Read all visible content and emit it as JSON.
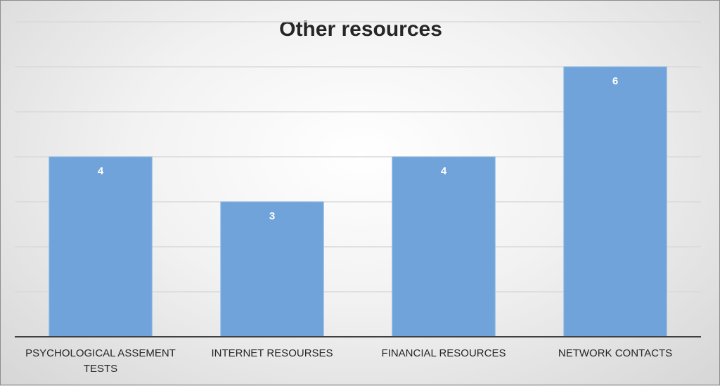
{
  "chart_data": {
    "type": "bar",
    "title": "Other resources",
    "categories": [
      "PSYCHOLOGICAL ASSEMENT TESTS",
      "INTERNET RESOURSES",
      "FINANCIAL RESOURCES",
      "NETWORK CONTACTS"
    ],
    "category_lines": [
      [
        "PSYCHOLOGICAL ASSEMENT",
        "TESTS"
      ],
      [
        "INTERNET RESOURSES"
      ],
      [
        "FINANCIAL RESOURCES"
      ],
      [
        "NETWORK CONTACTS"
      ]
    ],
    "values": [
      4,
      3,
      4,
      6
    ],
    "xlabel": "",
    "ylabel": "",
    "ylim": [
      0,
      7
    ],
    "grid": true,
    "y_tick_labels_shown": false,
    "bar_color": "#6fa3d9",
    "bar_edge_color": "#8fb9e6",
    "gridline_color": "#d9d9d9",
    "axis_color": "#404040"
  }
}
